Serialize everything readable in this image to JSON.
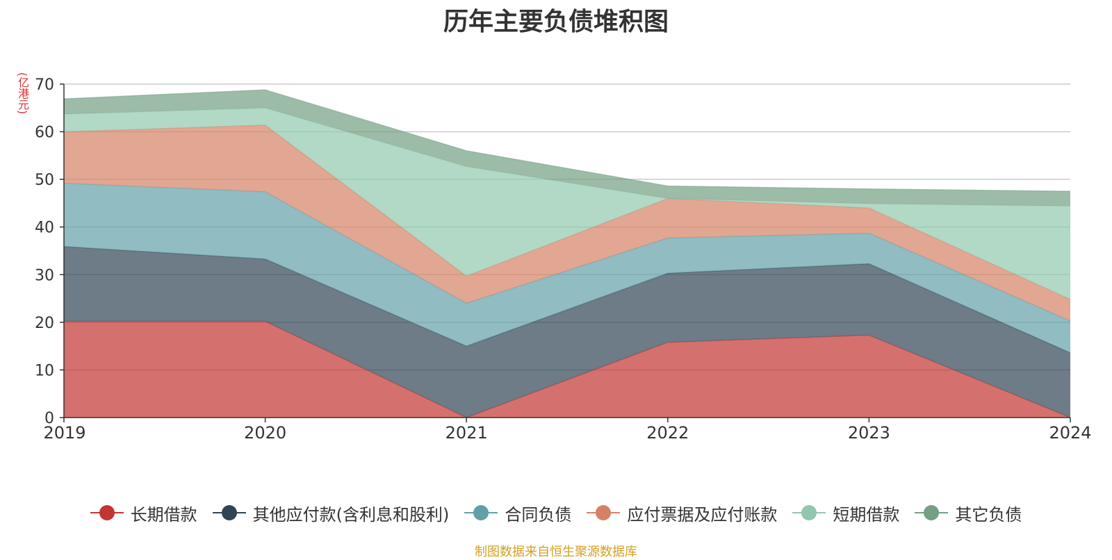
{
  "chart_data": {
    "type": "area",
    "stacked": true,
    "title": "历年主要负债堆积图",
    "y_unit": "(亿港元)",
    "x": [
      "2019",
      "2020",
      "2021",
      "2022",
      "2023",
      "2024"
    ],
    "ylim": [
      0,
      70
    ],
    "yticks": [
      "0",
      "10",
      "20",
      "30",
      "40",
      "50",
      "60",
      "70"
    ],
    "grid": true,
    "legend_position": "bottom",
    "series": [
      {
        "name": "长期借款",
        "color": "#c23531",
        "values": [
          20.2,
          20.2,
          0.0,
          15.8,
          17.3,
          0.0
        ]
      },
      {
        "name": "其他应付款(含利息和股利)",
        "color": "#2f4554",
        "values": [
          15.7,
          13.1,
          15.0,
          14.5,
          15.0,
          13.6
        ]
      },
      {
        "name": "合同负债",
        "color": "#61a0a8",
        "values": [
          13.3,
          14.1,
          9.0,
          7.4,
          6.4,
          6.7
        ]
      },
      {
        "name": "应付票据及应付账款",
        "color": "#d48265",
        "values": [
          10.8,
          14.0,
          5.7,
          8.3,
          5.3,
          4.5
        ]
      },
      {
        "name": "短期借款",
        "color": "#91c7ae",
        "values": [
          3.7,
          3.6,
          23.0,
          0.0,
          0.9,
          19.6
        ]
      },
      {
        "name": "其它负债",
        "color": "#749f83",
        "values": [
          3.2,
          3.8,
          3.3,
          2.6,
          3.1,
          3.1
        ]
      }
    ],
    "source_note": "制图数据来自恒生聚源数据库"
  }
}
